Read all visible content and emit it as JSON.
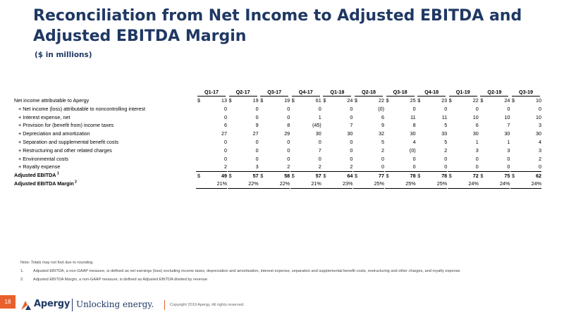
{
  "title": "Reconciliation from Net Income to Adjusted EBITDA and Adjusted EBITDA Margin",
  "subtitle": "($ in millions)",
  "table": {
    "quarters": [
      "Q1-17",
      "Q2-17",
      "Q3-17",
      "Q4-17",
      "Q1-18",
      "Q2-18",
      "Q3-18",
      "Q4-18",
      "Q1-19",
      "Q2-19",
      "Q3-19"
    ],
    "rows": [
      {
        "label": "Net income attributable to Apergy",
        "dollar": true,
        "values": [
          "13",
          "19",
          "19",
          "61",
          "24",
          "22",
          "25",
          "23",
          "22",
          "24",
          "10"
        ]
      },
      {
        "label": "+ Net income (loss) attributable to noncontrolling interest",
        "values": [
          "0",
          "0",
          "0",
          "0",
          "0",
          "(0)",
          "0",
          "0",
          "0",
          "0",
          "0"
        ]
      },
      {
        "label": "+ Interest expense, net",
        "values": [
          "0",
          "0",
          "0",
          "1",
          "0",
          "6",
          "11",
          "11",
          "10",
          "10",
          "10"
        ]
      },
      {
        "label": "+ Provision for (benefit from) income taxes",
        "values": [
          "6",
          "9",
          "8",
          "(45)",
          "7",
          "9",
          "8",
          "5",
          "6",
          "7",
          "3"
        ]
      },
      {
        "label": "+ Depreciation and amortization",
        "values": [
          "27",
          "27",
          "29",
          "30",
          "30",
          "32",
          "30",
          "33",
          "30",
          "30",
          "30"
        ]
      },
      {
        "label": "+ Separation and supplemental benefit costs",
        "values": [
          "0",
          "0",
          "0",
          "0",
          "0",
          "5",
          "4",
          "5",
          "1",
          "1",
          "4"
        ]
      },
      {
        "label": "+ Restructuring and other related charges",
        "values": [
          "0",
          "0",
          "0",
          "7",
          "0",
          "2",
          "(0)",
          "2",
          "3",
          "3",
          "3"
        ]
      },
      {
        "label": "+ Environmental costs",
        "values": [
          "0",
          "0",
          "0",
          "0",
          "0",
          "0",
          "0",
          "0",
          "0",
          "0",
          "2"
        ]
      },
      {
        "label": "+ Royalty expense",
        "values": [
          "2",
          "3",
          "2",
          "2",
          "2",
          "0",
          "0",
          "0",
          "0",
          "0",
          "0"
        ]
      }
    ],
    "ebitda": {
      "label": "Adjusted EBITDA",
      "sup": "1",
      "values": [
        "49",
        "57",
        "58",
        "57",
        "64",
        "77",
        "78",
        "78",
        "72",
        "75",
        "62"
      ]
    },
    "margin": {
      "label": "Adjusted EBITDA Margin",
      "sup": "2",
      "values": [
        "21%",
        "22%",
        "22%",
        "21%",
        "23%",
        "25%",
        "25%",
        "25%",
        "24%",
        "24%",
        "24%"
      ]
    },
    "dollar_sign": "$"
  },
  "notes": {
    "intro": "Note: Totals may not foot due to rounding.",
    "items": [
      {
        "num": "1.",
        "text": "Adjusted EBITDA, a non-GAAP measure, is defined as net earnings (loss) excluding income taxes, depreciation and amortization, interest expense, separation and supplemental benefit costs, restructuring and other charges, and royalty expense"
      },
      {
        "num": "2.",
        "text": "Adjusted EBITDA Margin, a non-GAAP measure, is defined as Adjusted EBITDA divided by revenue"
      }
    ]
  },
  "footer": {
    "page_number": "18",
    "brand": "Apergy",
    "tagline": "Unlocking energy.",
    "copyright": "Copyright 2019 Apergy. All rights reserved."
  },
  "colors": {
    "brand_navy": "#1f3864",
    "accent_orange": "#e8612c"
  }
}
